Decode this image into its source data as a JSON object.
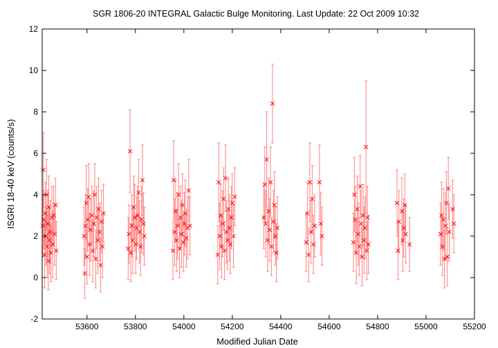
{
  "chart_data": {
    "type": "scatter",
    "title": "SGR 1806-20   INTEGRAL Galactic Bulge Monitoring.  Last Update: 22 Oct 2009 10:32",
    "xlabel": "Modified Julian Date",
    "ylabel": "ISGRI 18-40 keV (counts/s)",
    "xlim": [
      53415,
      55200
    ],
    "ylim": [
      -2,
      12
    ],
    "x_ticks": [
      53600,
      53800,
      54000,
      54200,
      54400,
      54600,
      54800,
      55000,
      55200
    ],
    "y_ticks": [
      -2,
      0,
      2,
      4,
      6,
      8,
      10,
      12
    ],
    "grid": false,
    "legend": "none",
    "colors": {
      "points": "#ff0000",
      "errorbars": "#ff8080",
      "axes": "#000000"
    },
    "marker": "x",
    "series": [
      {
        "points": [
          {
            "x": 53418,
            "y": 2.5,
            "err": 1.5
          },
          {
            "x": 53420,
            "y": 5.2,
            "err": 1.8
          },
          {
            "x": 53422,
            "y": 2.8,
            "err": 1.4
          },
          {
            "x": 53425,
            "y": 1.1,
            "err": 1.6
          },
          {
            "x": 53428,
            "y": 3.1,
            "err": 1.5
          },
          {
            "x": 53430,
            "y": 2.0,
            "err": 1.4
          },
          {
            "x": 53433,
            "y": 4.0,
            "err": 1.7
          },
          {
            "x": 53435,
            "y": 1.5,
            "err": 1.5
          },
          {
            "x": 53438,
            "y": 2.6,
            "err": 1.6
          },
          {
            "x": 53440,
            "y": 0.8,
            "err": 1.4
          },
          {
            "x": 53442,
            "y": 3.4,
            "err": 1.5
          },
          {
            "x": 53445,
            "y": 1.8,
            "err": 1.6
          },
          {
            "x": 53448,
            "y": 2.2,
            "err": 1.5
          },
          {
            "x": 53451,
            "y": 1.2,
            "err": 1.4
          },
          {
            "x": 53455,
            "y": 2.9,
            "err": 1.5
          },
          {
            "x": 53458,
            "y": 1.6,
            "err": 1.6
          },
          {
            "x": 53462,
            "y": 3.0,
            "err": 1.4
          },
          {
            "x": 53466,
            "y": 2.1,
            "err": 1.5
          },
          {
            "x": 53470,
            "y": 3.5,
            "err": 1.3
          },
          {
            "x": 53473,
            "y": 1.3,
            "err": 1.4
          },
          {
            "x": 53588,
            "y": 2.0,
            "err": 1.4
          },
          {
            "x": 53591,
            "y": 0.2,
            "err": 1.2
          },
          {
            "x": 53594,
            "y": 2.5,
            "err": 1.5
          },
          {
            "x": 53597,
            "y": 3.6,
            "err": 1.8
          },
          {
            "x": 53600,
            "y": 1.0,
            "err": 1.3
          },
          {
            "x": 53603,
            "y": 2.8,
            "err": 1.5
          },
          {
            "x": 53607,
            "y": 3.9,
            "err": 1.6
          },
          {
            "x": 53611,
            "y": 1.6,
            "err": 1.5
          },
          {
            "x": 53615,
            "y": 2.3,
            "err": 1.5
          },
          {
            "x": 53620,
            "y": 3.0,
            "err": 1.4
          },
          {
            "x": 53624,
            "y": 1.3,
            "err": 1.5
          },
          {
            "x": 53628,
            "y": 2.6,
            "err": 1.6
          },
          {
            "x": 53632,
            "y": 4.0,
            "err": 1.5
          },
          {
            "x": 53636,
            "y": 0.9,
            "err": 1.4
          },
          {
            "x": 53640,
            "y": 2.9,
            "err": 1.5
          },
          {
            "x": 53644,
            "y": 1.8,
            "err": 1.6
          },
          {
            "x": 53648,
            "y": 3.3,
            "err": 1.5
          },
          {
            "x": 53652,
            "y": 2.2,
            "err": 1.4
          },
          {
            "x": 53656,
            "y": 0.6,
            "err": 1.3
          },
          {
            "x": 53660,
            "y": 2.7,
            "err": 1.5
          },
          {
            "x": 53664,
            "y": 1.5,
            "err": 1.5
          },
          {
            "x": 53668,
            "y": 3.1,
            "err": 1.4
          },
          {
            "x": 53770,
            "y": 1.4,
            "err": 1.5
          },
          {
            "x": 53774,
            "y": 2.1,
            "err": 1.4
          },
          {
            "x": 53778,
            "y": 6.1,
            "err": 2.0
          },
          {
            "x": 53781,
            "y": 1.2,
            "err": 1.4
          },
          {
            "x": 53785,
            "y": 2.5,
            "err": 1.5
          },
          {
            "x": 53789,
            "y": 1.8,
            "err": 1.6
          },
          {
            "x": 53793,
            "y": 3.4,
            "err": 1.5
          },
          {
            "x": 53797,
            "y": 2.9,
            "err": 1.6
          },
          {
            "x": 53801,
            "y": 1.6,
            "err": 1.4
          },
          {
            "x": 53805,
            "y": 2.4,
            "err": 1.5
          },
          {
            "x": 53809,
            "y": 3.0,
            "err": 1.4
          },
          {
            "x": 53813,
            "y": 4.1,
            "err": 1.6
          },
          {
            "x": 53817,
            "y": 2.2,
            "err": 1.5
          },
          {
            "x": 53821,
            "y": 1.5,
            "err": 1.4
          },
          {
            "x": 53825,
            "y": 2.8,
            "err": 1.6
          },
          {
            "x": 53829,
            "y": 4.7,
            "err": 1.7
          },
          {
            "x": 53833,
            "y": 2.6,
            "err": 1.5
          },
          {
            "x": 53837,
            "y": 2.0,
            "err": 1.4
          },
          {
            "x": 53955,
            "y": 1.3,
            "err": 1.4
          },
          {
            "x": 53958,
            "y": 4.7,
            "err": 1.9
          },
          {
            "x": 53962,
            "y": 2.2,
            "err": 1.6
          },
          {
            "x": 53966,
            "y": 3.2,
            "err": 1.5
          },
          {
            "x": 53970,
            "y": 1.8,
            "err": 1.5
          },
          {
            "x": 53974,
            "y": 2.5,
            "err": 1.6
          },
          {
            "x": 53978,
            "y": 4.0,
            "err": 1.5
          },
          {
            "x": 53982,
            "y": 1.4,
            "err": 1.4
          },
          {
            "x": 53986,
            "y": 2.9,
            "err": 1.5
          },
          {
            "x": 53990,
            "y": 2.1,
            "err": 1.6
          },
          {
            "x": 53994,
            "y": 3.5,
            "err": 1.5
          },
          {
            "x": 53998,
            "y": 1.7,
            "err": 1.4
          },
          {
            "x": 54002,
            "y": 2.6,
            "err": 1.5
          },
          {
            "x": 54006,
            "y": 3.1,
            "err": 1.6
          },
          {
            "x": 54010,
            "y": 1.9,
            "err": 1.4
          },
          {
            "x": 54015,
            "y": 2.4,
            "err": 1.5
          },
          {
            "x": 54020,
            "y": 4.2,
            "err": 1.5
          },
          {
            "x": 54025,
            "y": 2.5,
            "err": 1.4
          },
          {
            "x": 54140,
            "y": 1.1,
            "err": 1.4
          },
          {
            "x": 54144,
            "y": 4.6,
            "err": 1.9
          },
          {
            "x": 54148,
            "y": 2.0,
            "err": 1.6
          },
          {
            "x": 54152,
            "y": 3.0,
            "err": 1.5
          },
          {
            "x": 54156,
            "y": 1.5,
            "err": 1.5
          },
          {
            "x": 54160,
            "y": 2.6,
            "err": 1.6
          },
          {
            "x": 54164,
            "y": 3.8,
            "err": 1.5
          },
          {
            "x": 54168,
            "y": 1.3,
            "err": 1.4
          },
          {
            "x": 54172,
            "y": 4.8,
            "err": 1.6
          },
          {
            "x": 54176,
            "y": 2.2,
            "err": 1.5
          },
          {
            "x": 54180,
            "y": 1.8,
            "err": 1.4
          },
          {
            "x": 54184,
            "y": 3.3,
            "err": 1.5
          },
          {
            "x": 54188,
            "y": 2.4,
            "err": 1.6
          },
          {
            "x": 54192,
            "y": 1.6,
            "err": 1.4
          },
          {
            "x": 54196,
            "y": 2.9,
            "err": 1.5
          },
          {
            "x": 54200,
            "y": 3.6,
            "err": 1.4
          },
          {
            "x": 54205,
            "y": 2.0,
            "err": 1.5
          },
          {
            "x": 54210,
            "y": 3.9,
            "err": 1.4
          },
          {
            "x": 54330,
            "y": 2.9,
            "err": 1.5
          },
          {
            "x": 54334,
            "y": 4.5,
            "err": 1.8
          },
          {
            "x": 54338,
            "y": 2.6,
            "err": 1.6
          },
          {
            "x": 54342,
            "y": 5.7,
            "err": 2.3
          },
          {
            "x": 54346,
            "y": 1.8,
            "err": 1.5
          },
          {
            "x": 54350,
            "y": 3.2,
            "err": 1.6
          },
          {
            "x": 54354,
            "y": 2.3,
            "err": 1.5
          },
          {
            "x": 54358,
            "y": 4.6,
            "err": 1.7
          },
          {
            "x": 54362,
            "y": 1.5,
            "err": 1.4
          },
          {
            "x": 54366,
            "y": 8.4,
            "err": 1.9
          },
          {
            "x": 54370,
            "y": 2.7,
            "err": 1.5
          },
          {
            "x": 54374,
            "y": 3.5,
            "err": 1.6
          },
          {
            "x": 54378,
            "y": 2.0,
            "err": 1.4
          },
          {
            "x": 54382,
            "y": 1.2,
            "err": 1.4
          },
          {
            "x": 54386,
            "y": 2.4,
            "err": 1.5
          },
          {
            "x": 54505,
            "y": 1.7,
            "err": 1.4
          },
          {
            "x": 54510,
            "y": 3.1,
            "err": 1.5
          },
          {
            "x": 54515,
            "y": 1.1,
            "err": 1.3
          },
          {
            "x": 54520,
            "y": 4.6,
            "err": 1.9
          },
          {
            "x": 54525,
            "y": 2.2,
            "err": 1.5
          },
          {
            "x": 54530,
            "y": 3.8,
            "err": 1.6
          },
          {
            "x": 54535,
            "y": 1.6,
            "err": 1.4
          },
          {
            "x": 54540,
            "y": 2.5,
            "err": 1.5
          },
          {
            "x": 54560,
            "y": 4.6,
            "err": 1.8
          },
          {
            "x": 54565,
            "y": 2.6,
            "err": 1.5
          },
          {
            "x": 54570,
            "y": 2.0,
            "err": 1.4
          },
          {
            "x": 54700,
            "y": 1.7,
            "err": 1.4
          },
          {
            "x": 54704,
            "y": 4.0,
            "err": 1.8
          },
          {
            "x": 54708,
            "y": 2.8,
            "err": 1.6
          },
          {
            "x": 54712,
            "y": 1.2,
            "err": 1.5
          },
          {
            "x": 54716,
            "y": 3.3,
            "err": 1.6
          },
          {
            "x": 54720,
            "y": 2.1,
            "err": 1.5
          },
          {
            "x": 54724,
            "y": 1.5,
            "err": 1.4
          },
          {
            "x": 54728,
            "y": 4.4,
            "err": 1.5
          },
          {
            "x": 54732,
            "y": 2.6,
            "err": 1.6
          },
          {
            "x": 54736,
            "y": 1.0,
            "err": 1.4
          },
          {
            "x": 54740,
            "y": 3.0,
            "err": 1.5
          },
          {
            "x": 54744,
            "y": 1.8,
            "err": 1.6
          },
          {
            "x": 54748,
            "y": 2.4,
            "err": 1.5
          },
          {
            "x": 54752,
            "y": 6.3,
            "err": 3.2
          },
          {
            "x": 54755,
            "y": 1.3,
            "err": 1.4
          },
          {
            "x": 54758,
            "y": 2.9,
            "err": 1.5
          },
          {
            "x": 54762,
            "y": 1.6,
            "err": 1.4
          },
          {
            "x": 54880,
            "y": 3.6,
            "err": 1.6
          },
          {
            "x": 54884,
            "y": 1.3,
            "err": 1.4
          },
          {
            "x": 54888,
            "y": 2.7,
            "err": 1.5
          },
          {
            "x": 54900,
            "y": 3.2,
            "err": 1.6
          },
          {
            "x": 54904,
            "y": 1.8,
            "err": 1.5
          },
          {
            "x": 54908,
            "y": 2.4,
            "err": 1.4
          },
          {
            "x": 54912,
            "y": 3.5,
            "err": 1.5
          },
          {
            "x": 54916,
            "y": 2.1,
            "err": 1.4
          },
          {
            "x": 54932,
            "y": 1.6,
            "err": 1.3
          },
          {
            "x": 55060,
            "y": 2.1,
            "err": 1.5
          },
          {
            "x": 55064,
            "y": 3.0,
            "err": 1.6
          },
          {
            "x": 55068,
            "y": 1.5,
            "err": 1.4
          },
          {
            "x": 55072,
            "y": 2.8,
            "err": 1.5
          },
          {
            "x": 55076,
            "y": 0.9,
            "err": 1.4
          },
          {
            "x": 55080,
            "y": 2.5,
            "err": 1.6
          },
          {
            "x": 55084,
            "y": 3.6,
            "err": 1.5
          },
          {
            "x": 55088,
            "y": 1.0,
            "err": 1.4
          },
          {
            "x": 55092,
            "y": 4.3,
            "err": 1.5
          },
          {
            "x": 55096,
            "y": 2.2,
            "err": 1.4
          },
          {
            "x": 55110,
            "y": 3.3,
            "err": 1.4
          },
          {
            "x": 55115,
            "y": 2.6,
            "err": 1.4
          }
        ]
      }
    ]
  }
}
